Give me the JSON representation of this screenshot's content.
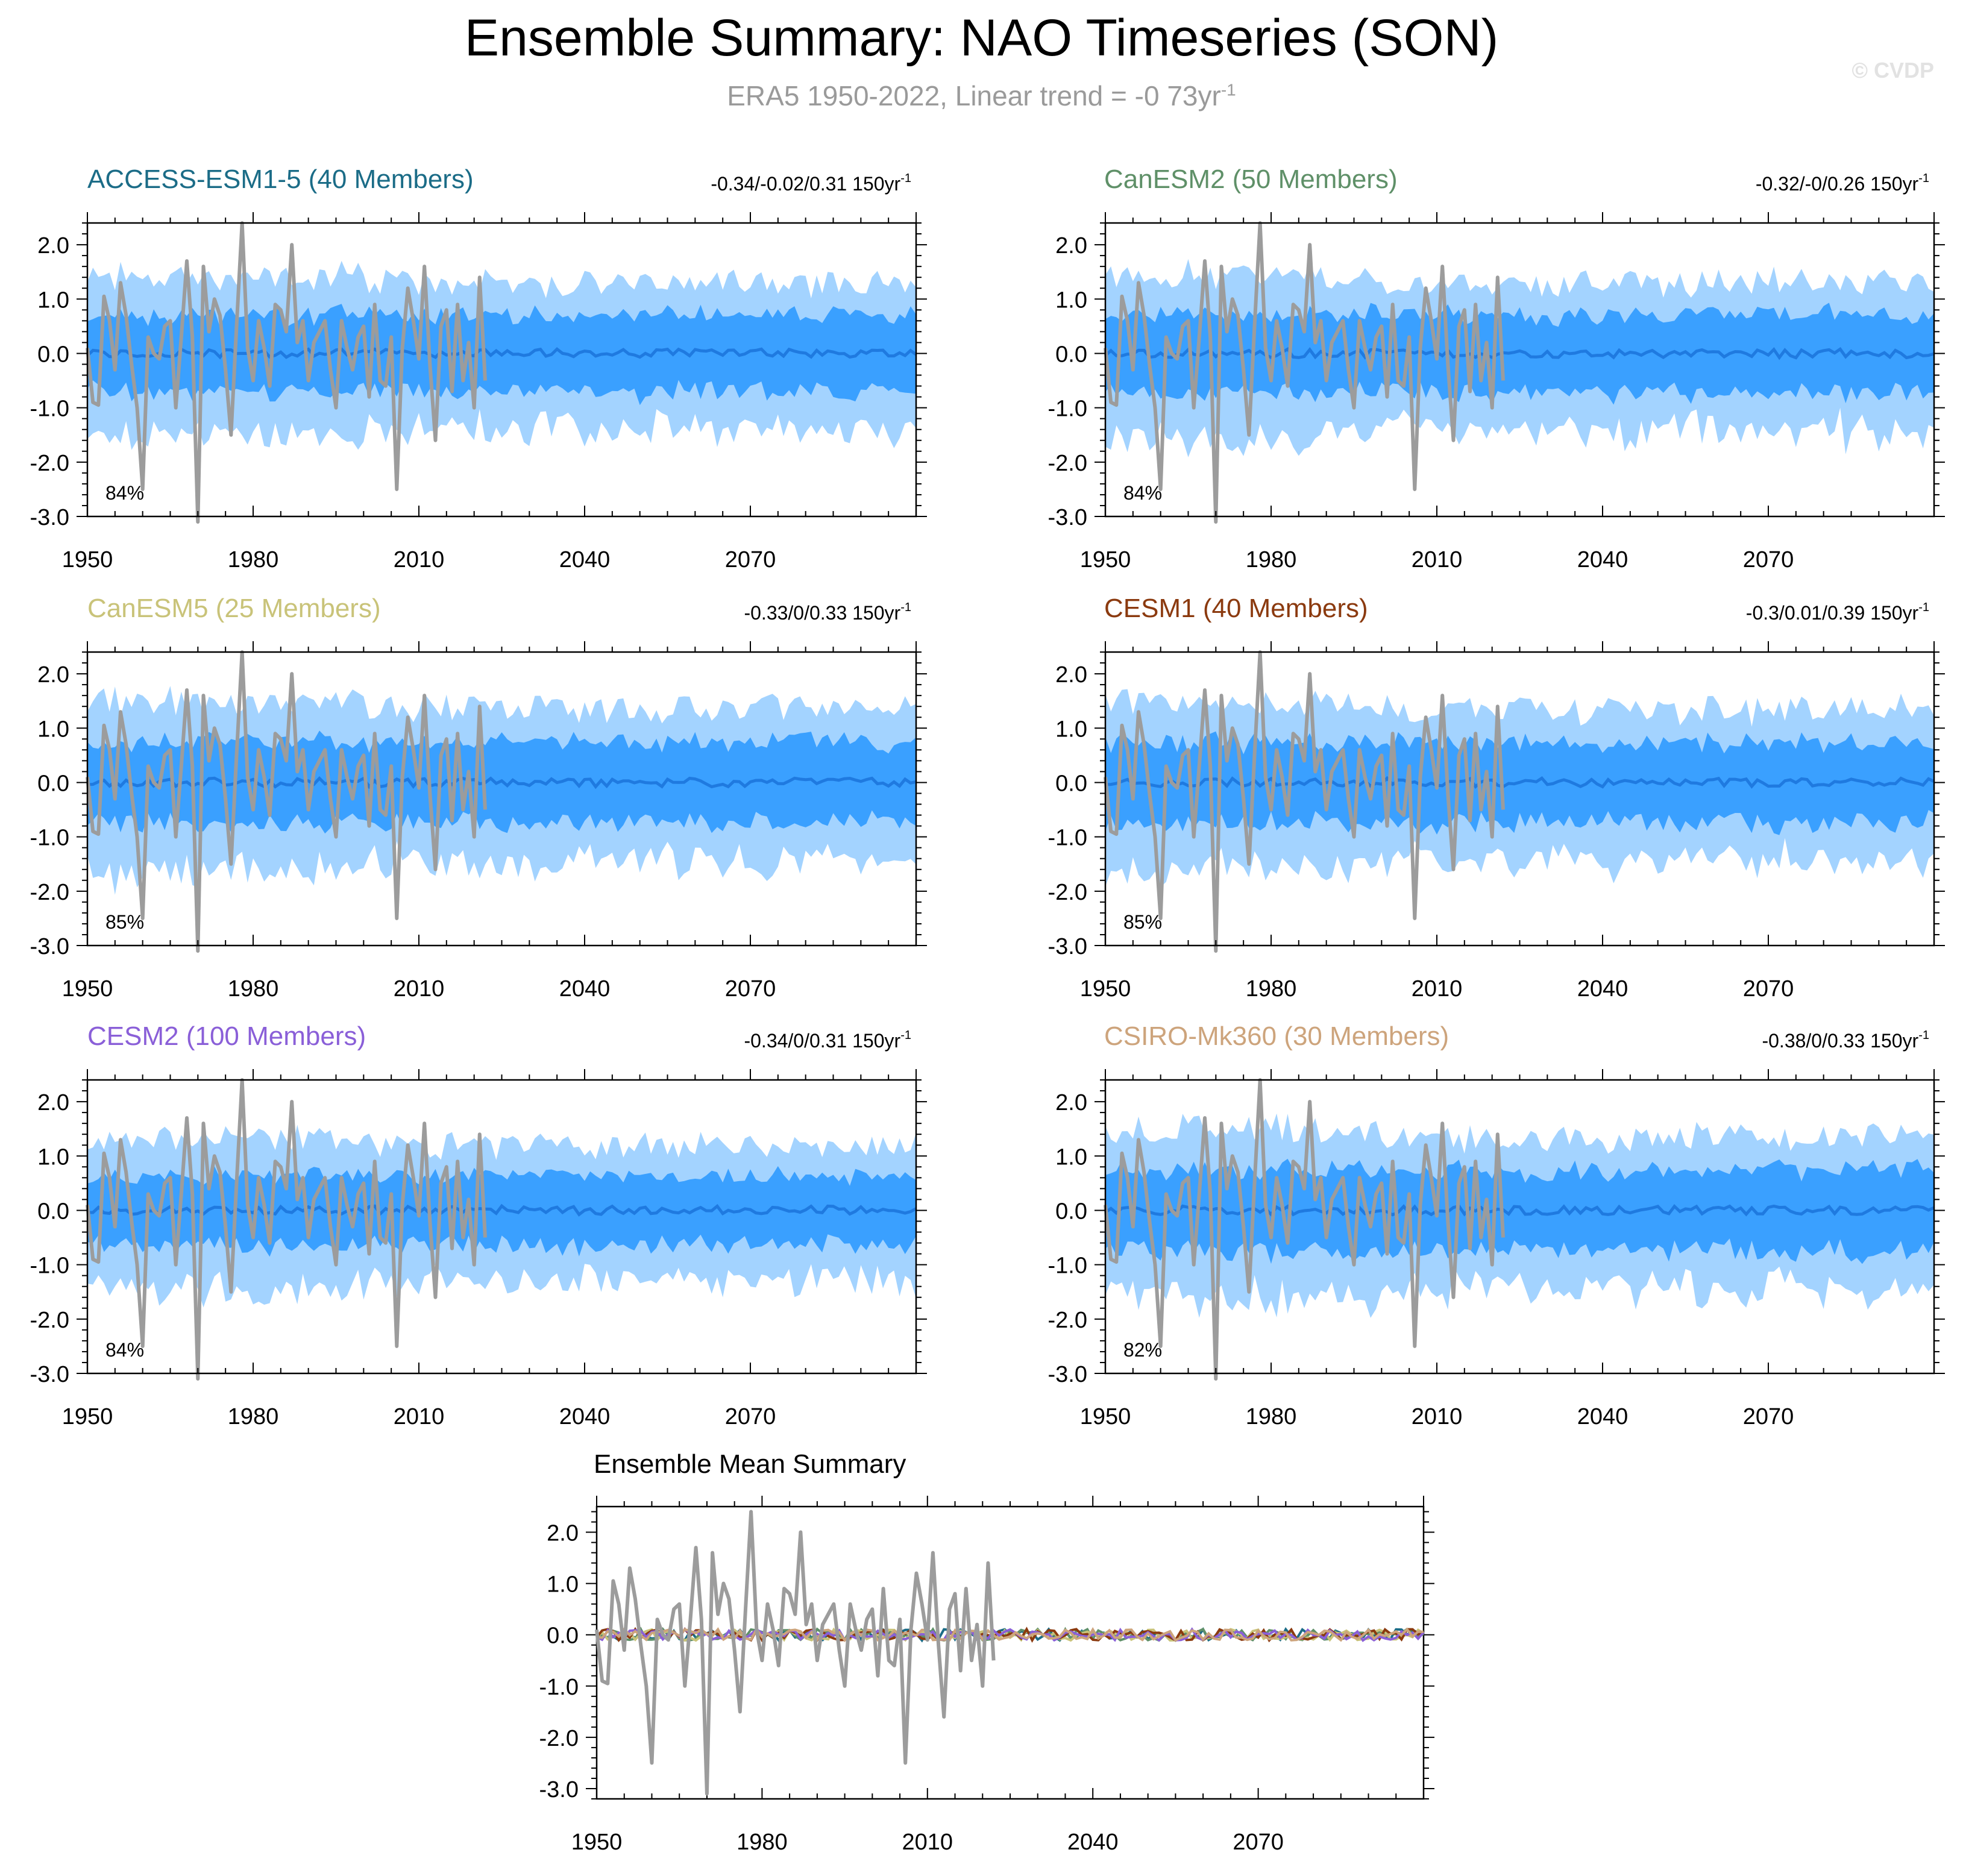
{
  "title": "Ensemble Summary: NAO Timeseries (SON)",
  "subtitle": {
    "text": "ERA5 1950-2022, Linear trend = -0 73yr",
    "superscript": "-1"
  },
  "watermark": "© CVDP",
  "colors": {
    "observed_line": "#9c9c9c",
    "band_outer": "#a3d3ff",
    "band_inner": "#3aa0ff",
    "ensemble_mean": "#1f7ae0",
    "axis": "#000000"
  },
  "chart_data": [
    {
      "type": "area",
      "model": "ACCESS-ESM1-5 (40 Members)",
      "title_color": "#1b6c87",
      "trend_label": "-0.34/-0.02/0.31 150yr",
      "trend_sup": "-1",
      "percent_label": "84%",
      "xlim": [
        1950,
        2100
      ],
      "ylim": [
        -3.0,
        2.4
      ],
      "xticks": [
        "1950",
        "1980",
        "2010",
        "2040",
        "2070"
      ],
      "yticks": [
        "2.0",
        "1.0",
        "0.0",
        "-1.0",
        "-2.0",
        "-3.0"
      ],
      "seed": 11,
      "amp": 1.0
    },
    {
      "type": "area",
      "model": "CanESM2 (50 Members)",
      "title_color": "#5f9068",
      "trend_label": "-0.32/-0/0.26 150yr",
      "trend_sup": "-1",
      "percent_label": "84%",
      "xlim": [
        1950,
        2100
      ],
      "ylim": [
        -3.0,
        2.4
      ],
      "xticks": [
        "1950",
        "1980",
        "2010",
        "2040",
        "2070"
      ],
      "yticks": [
        "2.0",
        "1.0",
        "0.0",
        "-1.0",
        "-2.0",
        "-3.0"
      ],
      "seed": 23,
      "amp": 1.02
    },
    {
      "type": "area",
      "model": "CanESM5 (25 Members)",
      "title_color": "#c9c379",
      "trend_label": "-0.33/0/0.33 150yr",
      "trend_sup": "-1",
      "percent_label": "85%",
      "xlim": [
        1950,
        2100
      ],
      "ylim": [
        -3.0,
        2.4
      ],
      "xticks": [
        "1950",
        "1980",
        "2010",
        "2040",
        "2070"
      ],
      "yticks": [
        "2.0",
        "1.0",
        "0.0",
        "-1.0",
        "-2.0",
        "-3.0"
      ],
      "seed": 37,
      "amp": 1.06
    },
    {
      "type": "area",
      "model": "CESM1 (40 Members)",
      "title_color": "#8b3a0f",
      "trend_label": "-0.3/0.01/0.39 150yr",
      "trend_sup": "-1",
      "percent_label": "85%",
      "xlim": [
        1950,
        2100
      ],
      "ylim": [
        -3.0,
        2.4
      ],
      "xticks": [
        "1950",
        "1980",
        "2010",
        "2040",
        "2070"
      ],
      "yticks": [
        "2.0",
        "1.0",
        "0.0",
        "-1.0",
        "-2.0",
        "-3.0"
      ],
      "seed": 41,
      "amp": 1.04
    },
    {
      "type": "area",
      "model": "CESM2 (100 Members)",
      "title_color": "#8a5fd8",
      "trend_label": "-0.34/0/0.31 150yr",
      "trend_sup": "-1",
      "percent_label": "84%",
      "xlim": [
        1950,
        2100
      ],
      "ylim": [
        -3.0,
        2.4
      ],
      "xticks": [
        "1950",
        "1980",
        "2010",
        "2040",
        "2070"
      ],
      "yticks": [
        "2.0",
        "1.0",
        "0.0",
        "-1.0",
        "-2.0",
        "-3.0"
      ],
      "seed": 53,
      "amp": 0.93
    },
    {
      "type": "area",
      "model": "CSIRO-Mk360 (30 Members)",
      "title_color": "#cda47c",
      "trend_label": "-0.38/0/0.33 150yr",
      "trend_sup": "-1",
      "percent_label": "82%",
      "xlim": [
        1950,
        2100
      ],
      "ylim": [
        -3.0,
        2.4
      ],
      "xticks": [
        "1950",
        "1980",
        "2010",
        "2040",
        "2070"
      ],
      "yticks": [
        "2.0",
        "1.0",
        "0.0",
        "-1.0",
        "-2.0",
        "-3.0"
      ],
      "seed": 67,
      "amp": 1.05
    },
    {
      "type": "line",
      "model": "Ensemble Mean Summary",
      "title_color": "#000000",
      "xlim": [
        1950,
        2100
      ],
      "ylim": [
        -3.2,
        2.5
      ],
      "xticks": [
        "1950",
        "1980",
        "2010",
        "2040",
        "2070"
      ],
      "yticks": [
        "2.0",
        "1.0",
        "0.0",
        "-1.0",
        "-2.0",
        "-3.0"
      ],
      "mean_series_colors": [
        "#1b6c87",
        "#5f9068",
        "#c9c379",
        "#8b3a0f",
        "#8a5fd8",
        "#cda47c"
      ]
    }
  ],
  "observed_series": {
    "name": "ERA5",
    "x": [
      1950,
      1951,
      1952,
      1953,
      1954,
      1955,
      1956,
      1957,
      1958,
      1959,
      1960,
      1961,
      1962,
      1963,
      1964,
      1965,
      1966,
      1967,
      1968,
      1969,
      1970,
      1971,
      1972,
      1973,
      1974,
      1975,
      1976,
      1977,
      1978,
      1979,
      1980,
      1981,
      1982,
      1983,
      1984,
      1985,
      1986,
      1987,
      1988,
      1989,
      1990,
      1991,
      1992,
      1993,
      1994,
      1995,
      1996,
      1997,
      1998,
      1999,
      2000,
      2001,
      2002,
      2003,
      2004,
      2005,
      2006,
      2007,
      2008,
      2009,
      2010,
      2011,
      2012,
      2013,
      2014,
      2015,
      2016,
      2017,
      2018,
      2019,
      2020,
      2021,
      2022
    ],
    "y": [
      0.1,
      -0.9,
      -0.95,
      1.05,
      0.6,
      -0.3,
      1.3,
      0.7,
      -0.2,
      -1.0,
      -2.5,
      0.3,
      0.0,
      -0.1,
      0.5,
      0.6,
      -1.0,
      0.3,
      1.7,
      0.3,
      -3.1,
      1.6,
      0.4,
      1.0,
      0.7,
      -0.3,
      -1.5,
      0.5,
      2.4,
      0.1,
      -0.5,
      0.6,
      0.1,
      -0.6,
      0.9,
      0.8,
      0.4,
      2.0,
      0.2,
      0.6,
      -0.5,
      0.2,
      0.4,
      0.6,
      -0.3,
      -1.0,
      0.6,
      0.1,
      -0.3,
      0.3,
      0.5,
      -0.8,
      0.9,
      -0.5,
      -0.6,
      0.3,
      -2.5,
      0.1,
      1.2,
      0.6,
      -0.1,
      1.6,
      -0.2,
      -1.6,
      0.5,
      0.8,
      -0.7,
      0.9,
      -0.5,
      0.2,
      -1.0,
      1.4,
      -0.5
    ]
  }
}
